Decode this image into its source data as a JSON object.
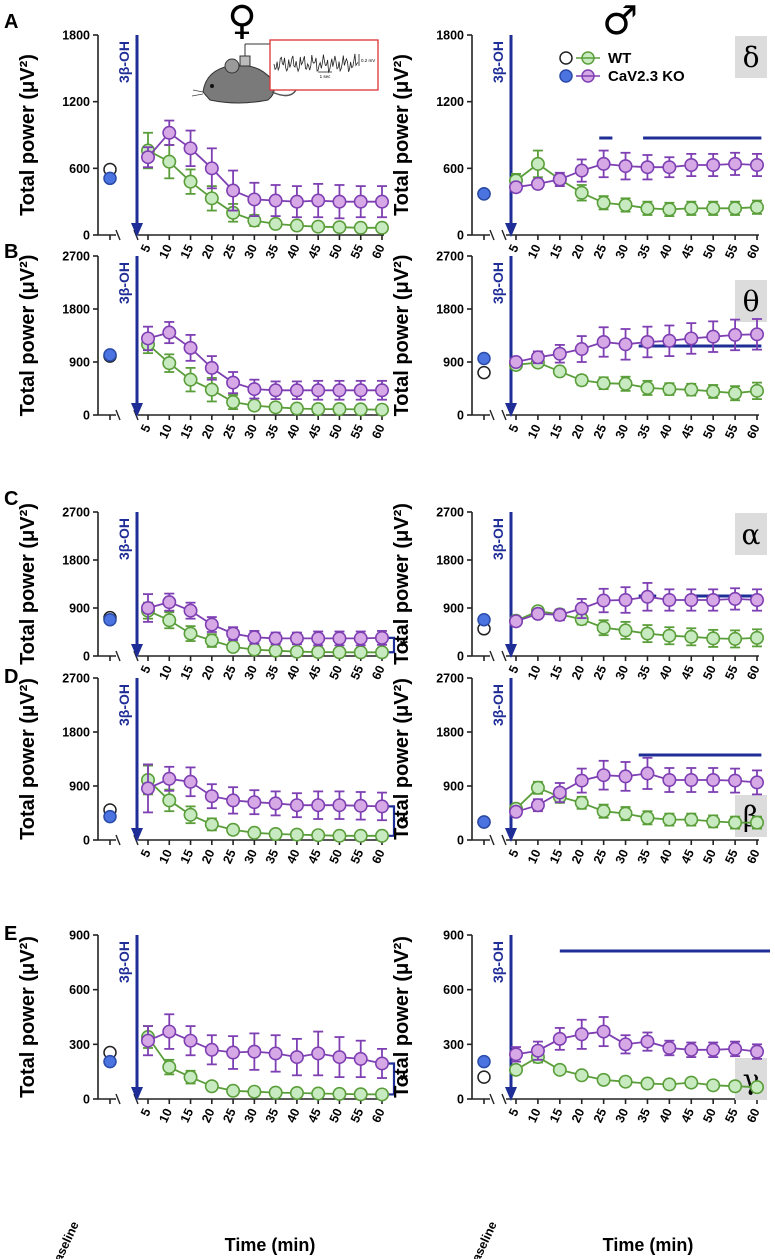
{
  "figure": {
    "female_symbol": "♀",
    "male_symbol": "♂",
    "ylabel": "Total power (μV²)",
    "xlabel": "Time (min)",
    "baseline_label": "baseline",
    "injection_label": "3β-OH",
    "significance_mark": "*",
    "legend": [
      {
        "label": "WT",
        "color": "#5a9e3a",
        "baseline_color": "#ffffff"
      },
      {
        "label": "CaV2.3 KO",
        "color": "#7e3fb3",
        "baseline_color": "#4c74e0"
      }
    ],
    "inset": {
      "amplitude_label": "0.2 mV",
      "time_label": "1 sec"
    },
    "colors": {
      "wt": "#5a9e3a",
      "wt_fill": "#c8eac0",
      "ko": "#7e3fb3",
      "ko_fill": "#d6a9e6",
      "injection": "#1f2d96",
      "significance": "#1f2d96",
      "band_bg": "#dcdcdc"
    }
  },
  "chart_data": [
    {
      "panel": "A",
      "sex": "female",
      "band": "δ",
      "type": "line",
      "ylim": [
        0,
        1800
      ],
      "yticks": [
        0,
        600,
        1200,
        1800
      ],
      "categories": [
        5,
        10,
        15,
        20,
        25,
        30,
        35,
        40,
        45,
        50,
        55,
        60
      ],
      "baseline": {
        "WT": 590,
        "CaV2.3 KO": 510
      },
      "series": [
        {
          "name": "WT",
          "values": [
            760,
            660,
            480,
            330,
            200,
            130,
            100,
            85,
            75,
            70,
            65,
            65
          ],
          "err": [
            160,
            150,
            110,
            110,
            80,
            50,
            30,
            20,
            20,
            20,
            20,
            20
          ]
        },
        {
          "name": "CaV2.3 KO",
          "values": [
            700,
            920,
            780,
            600,
            400,
            320,
            310,
            300,
            310,
            300,
            300,
            300
          ],
          "err": [
            90,
            110,
            160,
            180,
            180,
            150,
            140,
            140,
            150,
            150,
            140,
            140
          ]
        }
      ],
      "significance_bars": [],
      "bracket": false
    },
    {
      "panel": "A",
      "sex": "male",
      "band": "δ",
      "type": "line",
      "ylim": [
        0,
        1800
      ],
      "yticks": [
        0,
        600,
        1200,
        1800
      ],
      "categories": [
        5,
        10,
        15,
        20,
        25,
        30,
        35,
        40,
        45,
        50,
        55,
        60
      ],
      "baseline": {
        "WT": 370,
        "CaV2.3 KO": 370
      },
      "series": [
        {
          "name": "WT",
          "values": [
            490,
            640,
            500,
            380,
            290,
            270,
            240,
            230,
            240,
            240,
            240,
            250
          ],
          "err": [
            60,
            120,
            40,
            70,
            60,
            60,
            60,
            60,
            60,
            60,
            60,
            60
          ]
        },
        {
          "name": "CaV2.3 KO",
          "values": [
            430,
            460,
            500,
            580,
            640,
            620,
            610,
            610,
            630,
            630,
            640,
            630
          ],
          "err": [
            40,
            40,
            60,
            100,
            120,
            120,
            110,
            90,
            100,
            100,
            100,
            100
          ]
        }
      ],
      "significance_bars": [
        [
          24,
          27
        ],
        [
          34,
          61
        ]
      ],
      "bracket": false
    },
    {
      "panel": "B",
      "sex": "female",
      "band": "θ",
      "type": "line",
      "ylim": [
        0,
        2700
      ],
      "yticks": [
        0,
        900,
        1800,
        2700
      ],
      "categories": [
        5,
        10,
        15,
        20,
        25,
        30,
        35,
        40,
        45,
        50,
        55,
        60
      ],
      "baseline": {
        "WT": 1000,
        "CaV2.3 KO": 1020
      },
      "series": [
        {
          "name": "WT",
          "values": [
            1200,
            880,
            600,
            430,
            220,
            160,
            130,
            110,
            100,
            100,
            95,
            90
          ],
          "err": [
            150,
            150,
            200,
            200,
            120,
            50,
            40,
            30,
            30,
            30,
            30,
            30
          ]
        },
        {
          "name": "CaV2.3 KO",
          "values": [
            1300,
            1400,
            1140,
            800,
            550,
            440,
            420,
            420,
            420,
            420,
            420,
            420
          ],
          "err": [
            200,
            180,
            220,
            200,
            180,
            160,
            150,
            150,
            160,
            160,
            160,
            160
          ]
        }
      ],
      "significance_bars": [],
      "bracket": false
    },
    {
      "panel": "B",
      "sex": "male",
      "band": "θ",
      "type": "line",
      "ylim": [
        0,
        2700
      ],
      "yticks": [
        0,
        900,
        1800,
        2700
      ],
      "categories": [
        5,
        10,
        15,
        20,
        25,
        30,
        35,
        40,
        45,
        50,
        55,
        60
      ],
      "baseline": {
        "WT": 720,
        "CaV2.3 KO": 960
      },
      "series": [
        {
          "name": "WT",
          "values": [
            850,
            890,
            740,
            590,
            540,
            530,
            460,
            440,
            430,
            400,
            370,
            410
          ],
          "err": [
            60,
            60,
            60,
            80,
            100,
            120,
            120,
            100,
            100,
            110,
            120,
            140
          ]
        },
        {
          "name": "CaV2.3 KO",
          "values": [
            900,
            980,
            1040,
            1120,
            1240,
            1200,
            1240,
            1260,
            1300,
            1330,
            1360,
            1370
          ],
          "err": [
            60,
            100,
            150,
            220,
            250,
            260,
            260,
            260,
            260,
            260,
            260,
            260
          ]
        }
      ],
      "significance_bars": [
        [
          33,
          61
        ]
      ],
      "bracket": false
    },
    {
      "panel": "C",
      "sex": "female",
      "band": "α",
      "type": "line",
      "ylim": [
        0,
        2700
      ],
      "yticks": [
        0,
        900,
        1800,
        2700
      ],
      "categories": [
        5,
        10,
        15,
        20,
        25,
        30,
        35,
        40,
        45,
        50,
        55,
        60
      ],
      "baseline": {
        "WT": 720,
        "CaV2.3 KO": 680
      },
      "series": [
        {
          "name": "WT",
          "values": [
            850,
            670,
            420,
            290,
            170,
            120,
            100,
            80,
            75,
            70,
            70,
            70
          ],
          "err": [
            150,
            150,
            140,
            120,
            80,
            50,
            30,
            20,
            20,
            20,
            20,
            20
          ]
        },
        {
          "name": "CaV2.3 KO",
          "values": [
            900,
            1010,
            850,
            590,
            420,
            350,
            330,
            330,
            330,
            330,
            330,
            340
          ],
          "err": [
            260,
            160,
            150,
            140,
            120,
            120,
            110,
            110,
            130,
            130,
            130,
            130
          ]
        }
      ],
      "significance_bars": [],
      "bracket": true
    },
    {
      "panel": "C",
      "sex": "male",
      "band": "α",
      "type": "line",
      "ylim": [
        0,
        2700
      ],
      "yticks": [
        0,
        900,
        1800,
        2700
      ],
      "categories": [
        5,
        10,
        15,
        20,
        25,
        30,
        35,
        40,
        45,
        50,
        55,
        60
      ],
      "baseline": {
        "WT": 510,
        "CaV2.3 KO": 680
      },
      "series": [
        {
          "name": "WT",
          "values": [
            660,
            840,
            780,
            690,
            530,
            480,
            420,
            380,
            360,
            330,
            320,
            340
          ],
          "err": [
            80,
            60,
            80,
            100,
            140,
            160,
            160,
            160,
            160,
            160,
            160,
            160
          ]
        },
        {
          "name": "CaV2.3 KO",
          "values": [
            650,
            790,
            770,
            890,
            1040,
            1050,
            1110,
            1050,
            1050,
            1050,
            1070,
            1050
          ],
          "err": [
            80,
            80,
            100,
            180,
            220,
            240,
            260,
            200,
            200,
            200,
            200,
            200
          ]
        }
      ],
      "significance_bars": [
        [
          33,
          37
        ],
        [
          45,
          61
        ]
      ],
      "bracket": false
    },
    {
      "panel": "D",
      "sex": "female",
      "band": "β",
      "type": "line",
      "ylim": [
        0,
        2700
      ],
      "yticks": [
        0,
        900,
        1800,
        2700
      ],
      "categories": [
        5,
        10,
        15,
        20,
        25,
        30,
        35,
        40,
        45,
        50,
        55,
        60
      ],
      "baseline": {
        "WT": 500,
        "CaV2.3 KO": 390
      },
      "series": [
        {
          "name": "WT",
          "values": [
            1000,
            660,
            420,
            260,
            170,
            120,
            100,
            90,
            80,
            70,
            70,
            70
          ],
          "err": [
            240,
            180,
            140,
            100,
            70,
            40,
            30,
            20,
            20,
            20,
            20,
            20
          ]
        },
        {
          "name": "CaV2.3 KO",
          "values": [
            860,
            1020,
            970,
            730,
            660,
            630,
            610,
            580,
            580,
            580,
            570,
            560
          ],
          "err": [
            400,
            200,
            240,
            200,
            220,
            200,
            200,
            200,
            230,
            230,
            230,
            230
          ]
        }
      ],
      "significance_bars": [],
      "bracket": true
    },
    {
      "panel": "D",
      "sex": "male",
      "band": "β",
      "type": "line",
      "ylim": [
        0,
        2700
      ],
      "yticks": [
        0,
        900,
        1800,
        2700
      ],
      "categories": [
        5,
        10,
        15,
        20,
        25,
        30,
        35,
        40,
        45,
        50,
        55,
        60
      ],
      "baseline": {
        "WT": 300,
        "CaV2.3 KO": 300
      },
      "series": [
        {
          "name": "WT",
          "values": [
            520,
            870,
            720,
            620,
            480,
            440,
            370,
            340,
            340,
            310,
            290,
            290
          ],
          "err": [
            60,
            100,
            100,
            100,
            110,
            110,
            110,
            100,
            100,
            100,
            100,
            100
          ]
        },
        {
          "name": "CaV2.3 KO",
          "values": [
            470,
            580,
            790,
            990,
            1080,
            1060,
            1110,
            1000,
            1000,
            1000,
            990,
            960
          ],
          "err": [
            60,
            100,
            160,
            200,
            240,
            240,
            260,
            200,
            200,
            200,
            200,
            200
          ]
        }
      ],
      "significance_bars": [
        [
          33,
          61
        ]
      ],
      "bracket": false
    },
    {
      "panel": "E",
      "sex": "female",
      "band": "γ",
      "type": "line",
      "ylim": [
        0,
        900
      ],
      "yticks": [
        0,
        300,
        600,
        900
      ],
      "categories": [
        5,
        10,
        15,
        20,
        25,
        30,
        35,
        40,
        45,
        50,
        55,
        60
      ],
      "baseline": {
        "WT": 255,
        "CaV2.3 KO": 205
      },
      "series": [
        {
          "name": "WT",
          "values": [
            340,
            175,
            120,
            70,
            45,
            40,
            35,
            33,
            30,
            28,
            26,
            25
          ],
          "err": [
            60,
            40,
            35,
            20,
            10,
            10,
            10,
            10,
            10,
            10,
            10,
            10
          ]
        },
        {
          "name": "CaV2.3 KO",
          "values": [
            320,
            370,
            320,
            270,
            255,
            260,
            250,
            230,
            250,
            230,
            220,
            195
          ],
          "err": [
            80,
            95,
            80,
            80,
            90,
            100,
            100,
            100,
            120,
            110,
            100,
            80
          ]
        }
      ],
      "significance_bars": [],
      "bracket": true
    },
    {
      "panel": "E",
      "sex": "male",
      "band": "γ",
      "type": "line",
      "ylim": [
        0,
        900
      ],
      "yticks": [
        0,
        300,
        600,
        900
      ],
      "categories": [
        5,
        10,
        15,
        20,
        25,
        30,
        35,
        40,
        45,
        50,
        55,
        60
      ],
      "baseline": {
        "WT": 120,
        "CaV2.3 KO": 205
      },
      "series": [
        {
          "name": "WT",
          "values": [
            160,
            230,
            160,
            130,
            105,
            95,
            85,
            80,
            90,
            75,
            70,
            65
          ],
          "err": [
            20,
            30,
            20,
            20,
            20,
            20,
            20,
            20,
            20,
            20,
            20,
            20
          ]
        },
        {
          "name": "CaV2.3 KO",
          "values": [
            245,
            265,
            330,
            355,
            370,
            300,
            315,
            280,
            270,
            270,
            275,
            260
          ],
          "err": [
            40,
            50,
            60,
            80,
            80,
            50,
            50,
            40,
            40,
            40,
            40,
            40
          ]
        }
      ],
      "significance_bars": [
        [
          15,
          65
        ]
      ],
      "bracket": false
    }
  ]
}
